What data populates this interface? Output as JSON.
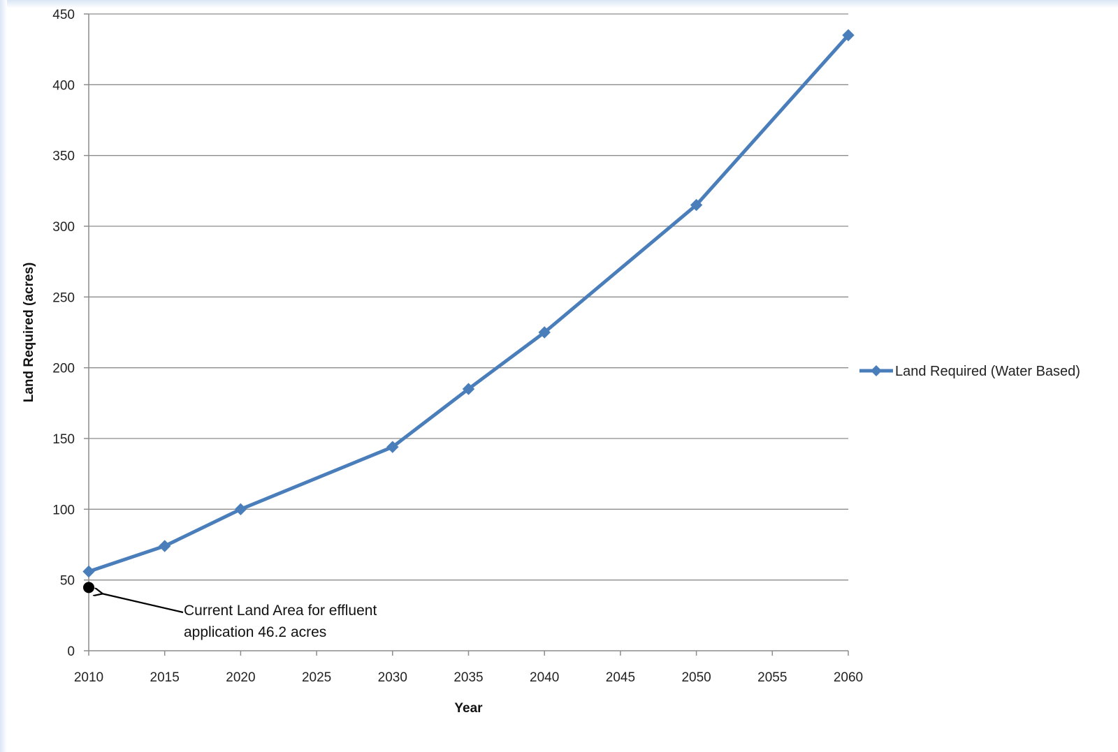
{
  "chart_data": {
    "type": "line",
    "title": "",
    "xlabel": "Year",
    "ylabel": "Land Required (acres)",
    "xlim": [
      2010,
      2060
    ],
    "ylim": [
      0,
      450
    ],
    "x_ticks": [
      2010,
      2015,
      2020,
      2025,
      2030,
      2035,
      2040,
      2045,
      2050,
      2055,
      2060
    ],
    "y_ticks": [
      0,
      50,
      100,
      150,
      200,
      250,
      300,
      350,
      400,
      450
    ],
    "grid": "horizontal",
    "legend_position": "right",
    "series": [
      {
        "name": "Land Required (Water Based)",
        "color": "#4a7ebb",
        "marker": "diamond",
        "x": [
          2010,
          2015,
          2020,
          2030,
          2035,
          2040,
          2050,
          2060
        ],
        "y": [
          56,
          74,
          100,
          144,
          185,
          225,
          315,
          435
        ]
      }
    ],
    "annotations": [
      {
        "x": 2010,
        "y": 46.2,
        "marker": "circle",
        "color": "#000000",
        "lines": [
          "Current Land Area for effluent",
          "application 46.2 acres"
        ]
      }
    ]
  }
}
